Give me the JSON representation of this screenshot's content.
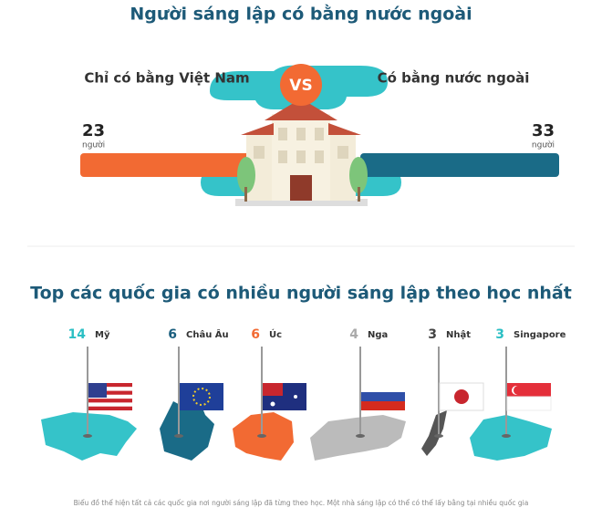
{
  "title": "Người sáng lập có bằng nước ngoài",
  "comparison": {
    "left": {
      "label": "Chỉ có bằng Việt Nam",
      "value": 23,
      "unit": "người"
    },
    "vs": "VS",
    "right": {
      "label": "Có bằng nước ngoài",
      "value": 33,
      "unit": "người"
    }
  },
  "countries_title": "Top các quốc gia có nhiều người sáng lập theo học nhất",
  "countries": [
    {
      "count": 14,
      "name": "Mỹ"
    },
    {
      "count": 6,
      "name": "Châu Âu"
    },
    {
      "count": 6,
      "name": "Úc"
    },
    {
      "count": 4,
      "name": "Nga"
    },
    {
      "count": 3,
      "name": "Nhật"
    },
    {
      "count": 3,
      "name": "Singapore"
    }
  ],
  "footnote": "Biểu đồ thể hiện tất cả các quốc gia nơi người sáng lập đã từng theo học. Một nhà sáng lập có thể có thể lấy bằng tại nhiều quốc gia"
}
